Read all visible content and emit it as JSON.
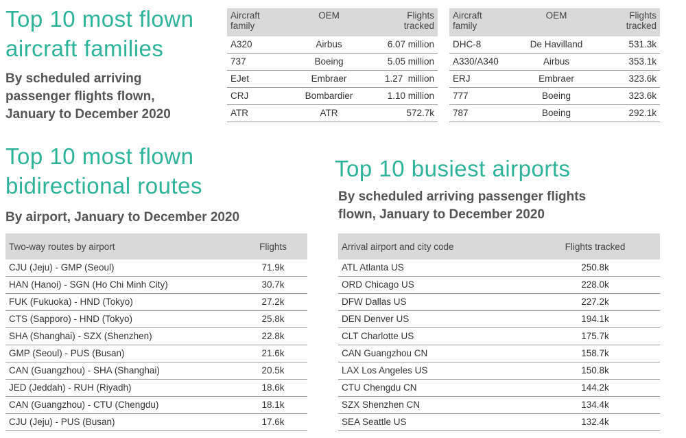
{
  "aircraft": {
    "title_line1": "Top 10 most flown",
    "title_line2": "aircraft families",
    "subtitle_line1": "By scheduled arriving",
    "subtitle_line2": "passenger flights flown,",
    "subtitle_line3": "January to December 2020",
    "headers": {
      "family_line1": "Aircraft",
      "family_line2": "family",
      "oem": "OEM",
      "flights_line1": "Flights",
      "flights_line2": "tracked"
    },
    "table_left": [
      {
        "family": "A320",
        "oem": "Airbus",
        "flights": "6.07 million"
      },
      {
        "family": "737",
        "oem": "Boeing",
        "flights": "5.05 million"
      },
      {
        "family": "EJet",
        "oem": "Embraer",
        "flights": "1.27  million"
      },
      {
        "family": "CRJ",
        "oem": "Bombardier",
        "flights": "1.10 million"
      },
      {
        "family": "ATR",
        "oem": "ATR",
        "flights": "572.7k"
      }
    ],
    "table_right": [
      {
        "family": "DHC-8",
        "oem": "De Havilland",
        "flights": "531.3k"
      },
      {
        "family": "A330/A340",
        "oem": "Airbus",
        "flights": "353.1k"
      },
      {
        "family": "ERJ",
        "oem": "Embraer",
        "flights": "323.6k"
      },
      {
        "family": "777",
        "oem": "Boeing",
        "flights": "323.6k"
      },
      {
        "family": "787",
        "oem": "Boeing",
        "flights": "292.1k"
      }
    ]
  },
  "routes": {
    "title_line1": "Top 10 most flown",
    "title_line2": "bidirectional routes",
    "subtitle": "By airport, January to December 2020",
    "headers": {
      "route": "Two-way routes by airport",
      "flights": "Flights"
    },
    "rows": [
      {
        "route": "CJU (Jeju) - GMP (Seoul)",
        "flights": "71.9k"
      },
      {
        "route": "HAN (Hanoi) - SGN (Ho Chi Minh City)",
        "flights": "30.7k"
      },
      {
        "route": "FUK (Fukuoka) - HND (Tokyo)",
        "flights": "27.2k"
      },
      {
        "route": "CTS (Sapporo) - HND (Tokyo)",
        "flights": "25.8k"
      },
      {
        "route": "SHA (Shanghai) - SZX (Shenzhen)",
        "flights": "22.8k"
      },
      {
        "route": "GMP (Seoul) - PUS (Busan)",
        "flights": "21.6k"
      },
      {
        "route": "CAN (Guangzhou) - SHA (Shanghai)",
        "flights": "20.5k"
      },
      {
        "route": "JED (Jeddah) - RUH (Riyadh)",
        "flights": "18.6k"
      },
      {
        "route": "CAN (Guangzhou) - CTU (Chengdu)",
        "flights": "18.1k"
      },
      {
        "route": "CJU (Jeju) - PUS (Busan)",
        "flights": "17.6k"
      }
    ]
  },
  "airports": {
    "title": "Top 10 busiest airports",
    "subtitle_line1": "By scheduled arriving passenger flights",
    "subtitle_line2": "flown, January to December 2020",
    "headers": {
      "airport": "Arrival airport and city code",
      "flights": "Flights tracked"
    },
    "rows": [
      {
        "airport": "ATL Atlanta US",
        "flights": "250.8k"
      },
      {
        "airport": "ORD Chicago US",
        "flights": "228.0k"
      },
      {
        "airport": "DFW Dallas US",
        "flights": "227.2k"
      },
      {
        "airport": "DEN Denver US",
        "flights": "194.1k"
      },
      {
        "airport": "CLT Charlotte US",
        "flights": "175.7k"
      },
      {
        "airport": "CAN Guangzhou CN",
        "flights": "158.7k"
      },
      {
        "airport": "LAX Los Angeles US",
        "flights": "150.8k"
      },
      {
        "airport": "CTU Chengdu CN",
        "flights": "144.2k"
      },
      {
        "airport": "SZX Shenzhen CN",
        "flights": "134.4k"
      },
      {
        "airport": "SEA Seattle US",
        "flights": "132.4k"
      }
    ]
  }
}
